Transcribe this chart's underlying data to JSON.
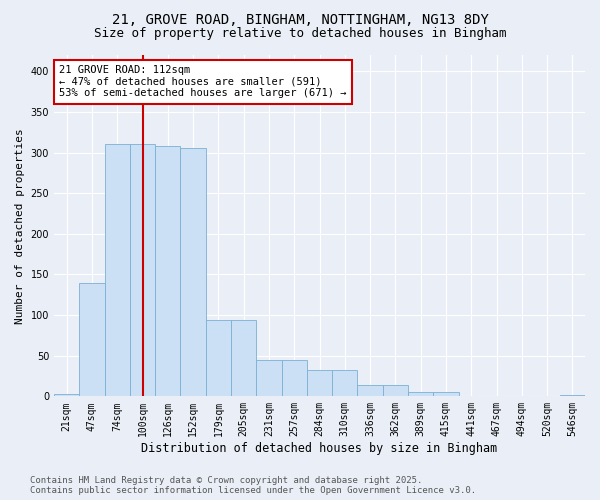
{
  "title1": "21, GROVE ROAD, BINGHAM, NOTTINGHAM, NG13 8DY",
  "title2": "Size of property relative to detached houses in Bingham",
  "xlabel": "Distribution of detached houses by size in Bingham",
  "ylabel": "Number of detached properties",
  "categories": [
    "21sqm",
    "47sqm",
    "74sqm",
    "100sqm",
    "126sqm",
    "152sqm",
    "179sqm",
    "205sqm",
    "231sqm",
    "257sqm",
    "284sqm",
    "310sqm",
    "336sqm",
    "362sqm",
    "389sqm",
    "415sqm",
    "441sqm",
    "467sqm",
    "494sqm",
    "520sqm",
    "546sqm"
  ],
  "values": [
    3,
    139,
    311,
    311,
    308,
    306,
    94,
    94,
    45,
    45,
    33,
    33,
    14,
    14,
    5,
    5,
    0,
    0,
    0,
    0,
    2
  ],
  "bar_color": "#cce0f5",
  "bar_edge_color": "#7ab0d4",
  "vline_x": 3,
  "vline_color": "#cc0000",
  "annotation_text": "21 GROVE ROAD: 112sqm\n← 47% of detached houses are smaller (591)\n53% of semi-detached houses are larger (671) →",
  "annotation_box_color": "#ffffff",
  "annotation_border_color": "#cc0000",
  "ylim": [
    0,
    420
  ],
  "yticks": [
    0,
    50,
    100,
    150,
    200,
    250,
    300,
    350,
    400
  ],
  "bg_color": "#eaeff7",
  "plot_bg_color": "#eaeff7",
  "footer_line1": "Contains HM Land Registry data © Crown copyright and database right 2025.",
  "footer_line2": "Contains public sector information licensed under the Open Government Licence v3.0.",
  "title_fontsize": 10,
  "subtitle_fontsize": 9,
  "tick_fontsize": 7,
  "xlabel_fontsize": 8.5,
  "ylabel_fontsize": 8,
  "footer_fontsize": 6.5,
  "ann_fontsize": 7.5
}
